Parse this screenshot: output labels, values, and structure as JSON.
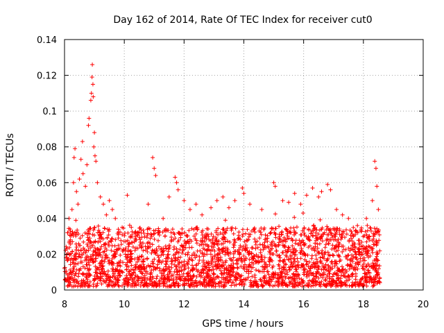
{
  "chart_data": {
    "type": "scatter",
    "title": "Day 162 of 2014, Rate Of TEC Index for receiver cut0",
    "xlabel": "GPS time / hours",
    "ylabel": "ROTI / TECUs",
    "xlim": [
      8,
      20
    ],
    "ylim": [
      0,
      0.14
    ],
    "xticks": [
      "8",
      "10",
      "12",
      "14",
      "16",
      "18",
      "20"
    ],
    "yticks": [
      "0",
      "0.02",
      "0.04",
      "0.06",
      "0.08",
      "0.1",
      "0.12",
      "0.14"
    ],
    "grid": true,
    "marker": "+",
    "color": "#ff0000",
    "series": [
      {
        "name": "ROTI",
        "points": [
          [
            8.0,
            0.012
          ],
          [
            8.05,
            0.018
          ],
          [
            8.1,
            0.032
          ],
          [
            8.15,
            0.04
          ],
          [
            8.2,
            0.028
          ],
          [
            8.25,
            0.045
          ],
          [
            8.3,
            0.06
          ],
          [
            8.32,
            0.074
          ],
          [
            8.35,
            0.079
          ],
          [
            8.4,
            0.055
          ],
          [
            8.45,
            0.048
          ],
          [
            8.5,
            0.062
          ],
          [
            8.55,
            0.073
          ],
          [
            8.6,
            0.083
          ],
          [
            8.62,
            0.065
          ],
          [
            8.7,
            0.058
          ],
          [
            8.75,
            0.07
          ],
          [
            8.8,
            0.092
          ],
          [
            8.82,
            0.096
          ],
          [
            8.88,
            0.106
          ],
          [
            8.9,
            0.11
          ],
          [
            8.92,
            0.119
          ],
          [
            8.93,
            0.126
          ],
          [
            8.95,
            0.115
          ],
          [
            8.96,
            0.108
          ],
          [
            8.98,
            0.08
          ],
          [
            9.0,
            0.088
          ],
          [
            9.02,
            0.075
          ],
          [
            9.05,
            0.072
          ],
          [
            9.1,
            0.06
          ],
          [
            9.2,
            0.052
          ],
          [
            9.3,
            0.048
          ],
          [
            9.4,
            0.042
          ],
          [
            9.5,
            0.05
          ],
          [
            9.6,
            0.045
          ],
          [
            9.7,
            0.04
          ],
          [
            9.8,
            0.034
          ],
          [
            10.1,
            0.053
          ],
          [
            10.2,
            0.03
          ],
          [
            10.4,
            0.028
          ],
          [
            10.8,
            0.048
          ],
          [
            10.95,
            0.074
          ],
          [
            11.0,
            0.068
          ],
          [
            11.05,
            0.064
          ],
          [
            11.3,
            0.04
          ],
          [
            11.5,
            0.052
          ],
          [
            11.7,
            0.063
          ],
          [
            11.75,
            0.06
          ],
          [
            11.8,
            0.056
          ],
          [
            12.0,
            0.05
          ],
          [
            12.2,
            0.045
          ],
          [
            12.4,
            0.048
          ],
          [
            12.6,
            0.042
          ],
          [
            12.9,
            0.046
          ],
          [
            13.1,
            0.05
          ],
          [
            13.3,
            0.052
          ],
          [
            13.5,
            0.046
          ],
          [
            13.7,
            0.05
          ],
          [
            13.95,
            0.057
          ],
          [
            14.0,
            0.054
          ],
          [
            14.2,
            0.048
          ],
          [
            14.6,
            0.045
          ],
          [
            15.0,
            0.06
          ],
          [
            15.05,
            0.058
          ],
          [
            15.3,
            0.05
          ],
          [
            15.5,
            0.049
          ],
          [
            15.7,
            0.054
          ],
          [
            15.9,
            0.048
          ],
          [
            16.1,
            0.053
          ],
          [
            16.3,
            0.057
          ],
          [
            16.5,
            0.052
          ],
          [
            16.6,
            0.055
          ],
          [
            16.8,
            0.059
          ],
          [
            16.9,
            0.056
          ],
          [
            17.1,
            0.045
          ],
          [
            17.3,
            0.042
          ],
          [
            17.5,
            0.04
          ],
          [
            17.8,
            0.036
          ],
          [
            18.1,
            0.04
          ],
          [
            18.3,
            0.05
          ],
          [
            18.38,
            0.072
          ],
          [
            18.42,
            0.068
          ],
          [
            18.45,
            0.058
          ],
          [
            18.5,
            0.045
          ],
          [
            18.55,
            0.004
          ]
        ]
      }
    ],
    "dense_band": {
      "x_start": 8.0,
      "x_end": 18.55,
      "typical_max": 0.035,
      "typical_min": 0.002,
      "center": 0.015
    }
  }
}
